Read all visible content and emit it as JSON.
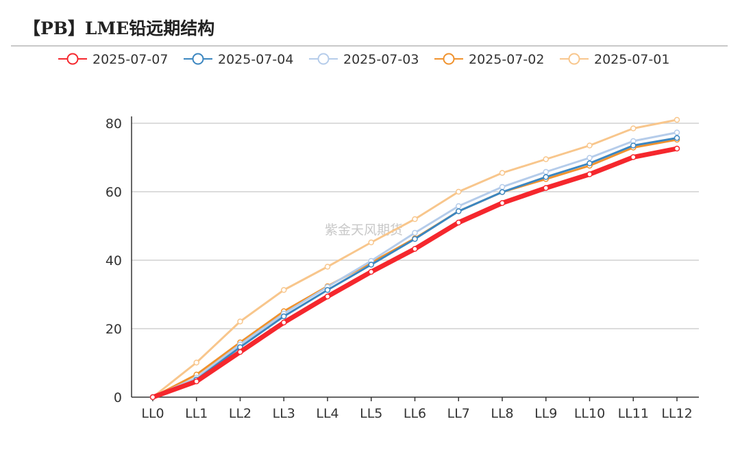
{
  "title": "【PB】LME铅远期结构",
  "watermark": "紫金天风期货",
  "chart_data": {
    "type": "line",
    "title": "【PB】LME铅远期结构",
    "xlabel": "",
    "ylabel": "",
    "categories": [
      "LL0",
      "LL1",
      "LL2",
      "LL3",
      "LL4",
      "LL5",
      "LL6",
      "LL7",
      "LL8",
      "LL9",
      "LL10",
      "LL11",
      "LL12"
    ],
    "ylim": [
      0,
      80
    ],
    "yticks": [
      "0",
      "20",
      "40",
      "60",
      "80"
    ],
    "grid": true,
    "legend_position": "top",
    "series": [
      {
        "name": "2025-07-07",
        "color": "#f5272d",
        "values": [
          0,
          4.6,
          13.2,
          21.8,
          29.4,
          36.6,
          43.3,
          51.0,
          56.7,
          61.1,
          65.1,
          70.1,
          72.6
        ]
      },
      {
        "name": "2025-07-04",
        "color": "#3b86c0",
        "values": [
          0,
          5.1,
          14.6,
          23.6,
          31.3,
          38.7,
          46.2,
          54.3,
          59.9,
          64.3,
          68.3,
          73.5,
          75.7
        ]
      },
      {
        "name": "2025-07-03",
        "color": "#b5ccea",
        "values": [
          0,
          5.7,
          15.4,
          24.4,
          32.2,
          39.8,
          48.0,
          55.8,
          61.4,
          65.8,
          69.9,
          74.8,
          77.3
        ]
      },
      {
        "name": "2025-07-02",
        "color": "#f0922d",
        "values": [
          0,
          6.6,
          16.0,
          25.1,
          32.4,
          39.3,
          46.4,
          54.3,
          59.9,
          63.7,
          67.6,
          72.9,
          75.2
        ]
      },
      {
        "name": "2025-07-01",
        "color": "#f8c68c",
        "values": [
          0,
          10.1,
          22.1,
          31.3,
          38.1,
          45.2,
          52.0,
          60.0,
          65.5,
          69.5,
          73.5,
          78.5,
          81.0
        ]
      }
    ]
  }
}
